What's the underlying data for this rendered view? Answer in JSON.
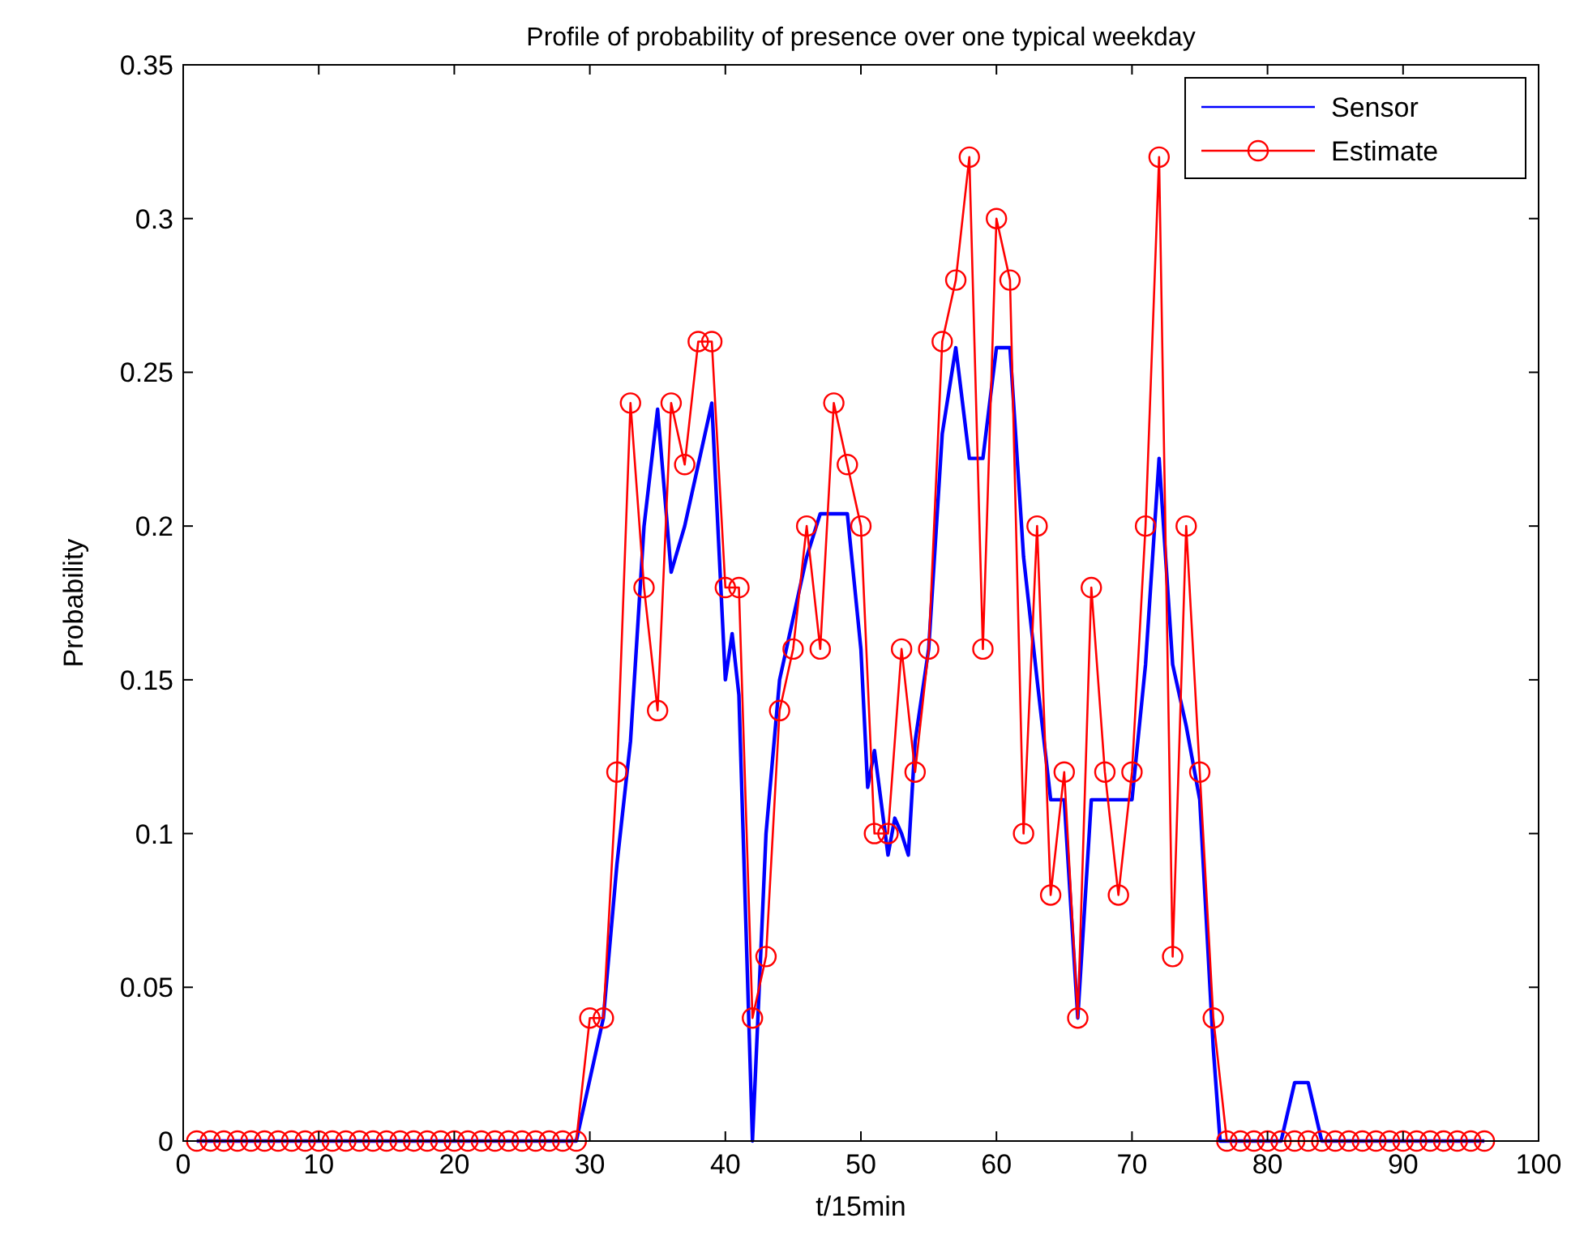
{
  "chart_data": {
    "type": "line",
    "title": "Profile of probability of presence over one typical weekday",
    "xlabel": "t/15min",
    "ylabel": "Probability",
    "xlim": [
      0,
      100
    ],
    "xticks": [
      0,
      10,
      20,
      30,
      40,
      50,
      60,
      70,
      80,
      90,
      100
    ],
    "ylim": [
      0,
      0.35
    ],
    "yticks": [
      0,
      0.05,
      0.1,
      0.15,
      0.2,
      0.25,
      0.3,
      0.35
    ],
    "grid": false,
    "legend": "top right",
    "series": [
      {
        "name": "Sensor",
        "color": "#0000ff",
        "marker": "none",
        "x": [
          1,
          29,
          30,
          31,
          32,
          33,
          34,
          35,
          36,
          37,
          38,
          39,
          40,
          40.5,
          41,
          42,
          43,
          44,
          45,
          46,
          47,
          48,
          49,
          50,
          50.5,
          51,
          52,
          52.5,
          53,
          53.5,
          54,
          55,
          56,
          57,
          58,
          59,
          60,
          61,
          62,
          63,
          64,
          65,
          66,
          67,
          68,
          69,
          70,
          71,
          72,
          73,
          74,
          75,
          76,
          76.5,
          81,
          82,
          83,
          84,
          96
        ],
        "values": [
          0,
          0,
          0.02,
          0.04,
          0.09,
          0.13,
          0.2,
          0.238,
          0.185,
          0.2,
          0.22,
          0.24,
          0.15,
          0.165,
          0.145,
          0,
          0.1,
          0.15,
          0.17,
          0.19,
          0.204,
          0.204,
          0.204,
          0.16,
          0.115,
          0.127,
          0.093,
          0.105,
          0.1,
          0.093,
          0.13,
          0.16,
          0.23,
          0.258,
          0.222,
          0.222,
          0.258,
          0.258,
          0.19,
          0.15,
          0.111,
          0.111,
          0.04,
          0.111,
          0.111,
          0.111,
          0.111,
          0.155,
          0.222,
          0.155,
          0.135,
          0.111,
          0.03,
          0,
          0,
          0.019,
          0.019,
          0,
          0
        ]
      },
      {
        "name": "Estimate",
        "color": "#ff0000",
        "marker": "circle",
        "x": [
          1,
          2,
          3,
          4,
          5,
          6,
          7,
          8,
          9,
          10,
          11,
          12,
          13,
          14,
          15,
          16,
          17,
          18,
          19,
          20,
          21,
          22,
          23,
          24,
          25,
          26,
          27,
          28,
          29,
          30,
          31,
          32,
          33,
          34,
          35,
          36,
          37,
          38,
          39,
          40,
          41,
          42,
          43,
          44,
          45,
          46,
          47,
          48,
          49,
          50,
          51,
          52,
          53,
          54,
          55,
          56,
          57,
          58,
          59,
          60,
          61,
          62,
          63,
          64,
          65,
          66,
          67,
          68,
          69,
          70,
          71,
          72,
          73,
          74,
          75,
          76,
          77,
          78,
          79,
          80,
          81,
          82,
          83,
          84,
          85,
          86,
          87,
          88,
          89,
          90,
          91,
          92,
          93,
          94,
          95,
          96
        ],
        "values": [
          0,
          0,
          0,
          0,
          0,
          0,
          0,
          0,
          0,
          0,
          0,
          0,
          0,
          0,
          0,
          0,
          0,
          0,
          0,
          0,
          0,
          0,
          0,
          0,
          0,
          0,
          0,
          0,
          0,
          0.04,
          0.04,
          0.12,
          0.24,
          0.18,
          0.14,
          0.24,
          0.22,
          0.26,
          0.26,
          0.18,
          0.18,
          0.04,
          0.06,
          0.14,
          0.16,
          0.2,
          0.16,
          0.24,
          0.22,
          0.2,
          0.1,
          0.1,
          0.16,
          0.12,
          0.16,
          0.26,
          0.28,
          0.32,
          0.16,
          0.3,
          0.28,
          0.1,
          0.2,
          0.08,
          0.12,
          0.04,
          0.18,
          0.12,
          0.08,
          0.12,
          0.2,
          0.32,
          0.06,
          0.2,
          0.12,
          0.04,
          0,
          0,
          0,
          0,
          0,
          0,
          0,
          0,
          0,
          0,
          0,
          0,
          0,
          0,
          0,
          0,
          0,
          0,
          0,
          0
        ]
      }
    ]
  }
}
